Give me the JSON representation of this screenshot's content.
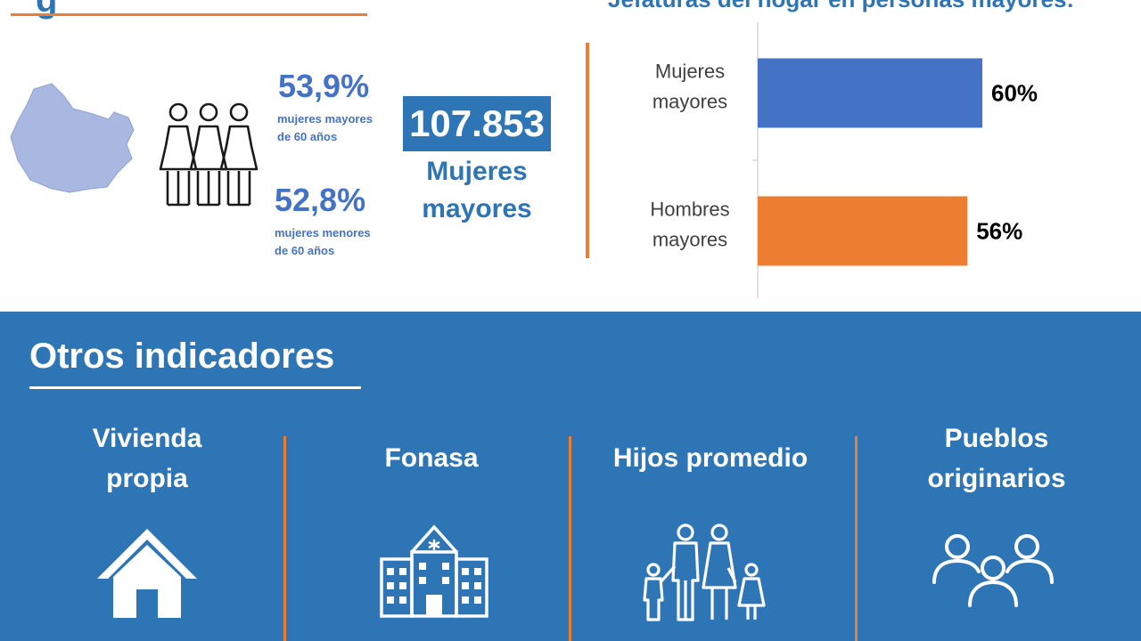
{
  "header": {
    "title_partial": "g",
    "chart_title_partial": "Jefaturas del hogar en personas mayores:"
  },
  "stats": {
    "older_women_pct": "53,9%",
    "older_women_label_line1": "mujeres mayores",
    "older_women_label_line2": "de 60 años",
    "younger_women_pct": "52,8%",
    "younger_women_label_line1": "mujeres menores",
    "younger_women_label_line2": "de 60 años",
    "total_value": "107.853",
    "total_label_line1": "Mujeres",
    "total_label_line2": "mayores"
  },
  "colors": {
    "brand_blue": "#2e75b6",
    "series_blue": "#4472c4",
    "accent_orange": "#ed7d31",
    "map_fill": "#a9b8e0"
  },
  "icons": [
    "region-map-icon",
    "women-group-icon",
    "house-icon",
    "hospital-icon",
    "family-icon",
    "people-group-icon"
  ],
  "chart_data": {
    "type": "bar",
    "orientation": "horizontal",
    "categories": [
      [
        "Mujeres",
        "mayores"
      ],
      [
        "Hombres",
        "mayores"
      ]
    ],
    "values": [
      60,
      56
    ],
    "value_labels": [
      "60%",
      "56%"
    ],
    "bar_colors": [
      "#4472c4",
      "#ed7d31"
    ],
    "xlim": [
      0,
      100
    ],
    "grid": false,
    "legend": "none"
  },
  "indicators": {
    "section_title": "Otros indicadores",
    "items": [
      {
        "title_line1": "Vivienda",
        "title_line2": "propia"
      },
      {
        "title_line1": "Fonasa",
        "title_line2": ""
      },
      {
        "title_line1": "Hijos promedio",
        "title_line2": ""
      },
      {
        "title_line1": "Pueblos",
        "title_line2": "originarios"
      }
    ]
  }
}
